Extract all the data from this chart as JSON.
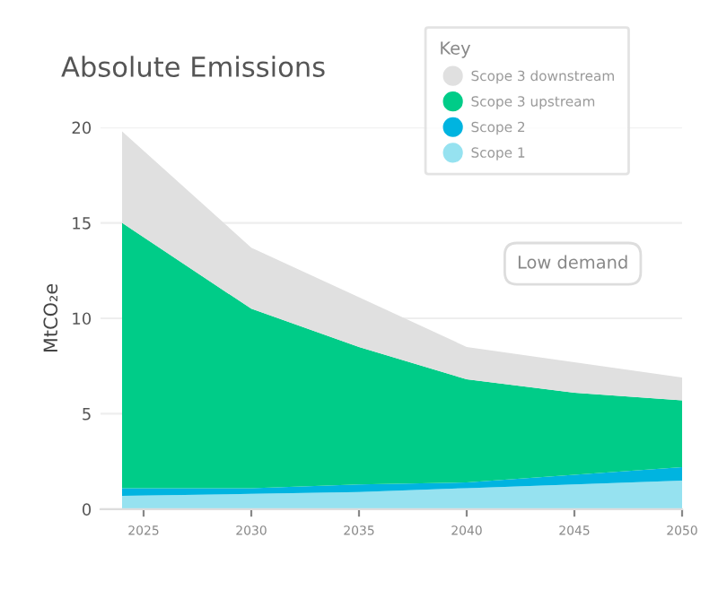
{
  "chart_data": {
    "type": "area",
    "stacked": true,
    "title": "Absolute Emissions",
    "ylabel": "MtCO₂e",
    "legend_title": "Key",
    "x": [
      2024,
      2030,
      2035,
      2040,
      2045,
      2050
    ],
    "series": [
      {
        "name": "Scope 1",
        "color": "#96e2f0",
        "values": [
          0.7,
          0.8,
          0.9,
          1.1,
          1.3,
          1.5
        ]
      },
      {
        "name": "Scope 2",
        "color": "#00b4e0",
        "values": [
          0.4,
          0.3,
          0.4,
          0.3,
          0.5,
          0.7
        ]
      },
      {
        "name": "Scope 3 upstream",
        "color": "#00cc88",
        "values": [
          13.9,
          9.4,
          7.2,
          5.4,
          4.3,
          3.5
        ]
      },
      {
        "name": "Scope 3 downstream",
        "color": "#e0e0e0",
        "values": [
          4.8,
          3.2,
          2.6,
          1.7,
          1.6,
          1.2
        ]
      }
    ],
    "xlim": [
      2023,
      2050
    ],
    "xticks": [
      2025,
      2030,
      2035,
      2040,
      2045,
      2050
    ],
    "ylim": [
      0,
      20
    ],
    "yticks": [
      0,
      5,
      10,
      15,
      20
    ],
    "grid": "y",
    "legend": "top right",
    "annotations": [
      "Low demand"
    ]
  }
}
